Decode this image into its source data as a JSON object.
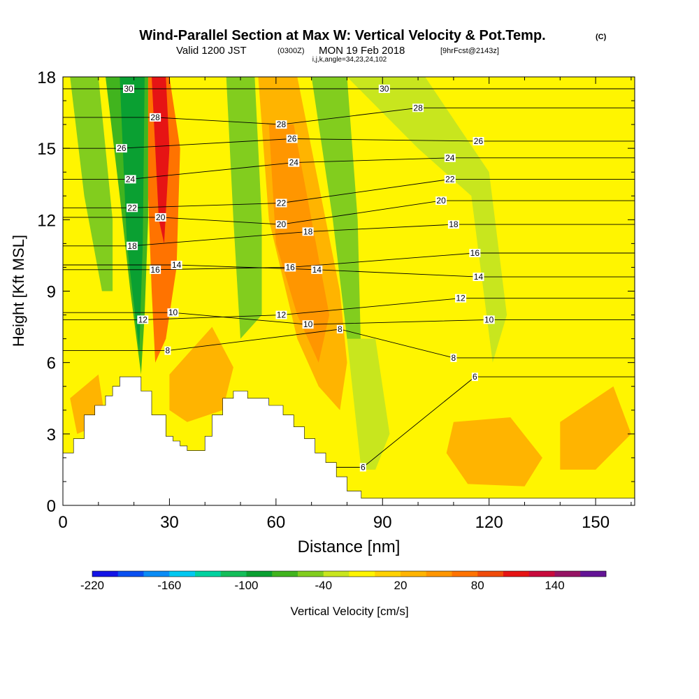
{
  "header": {
    "title": "Wind-Parallel Section at Max W: Vertical Velocity & Pot.Temp.",
    "title_suffix": "(C)",
    "valid_prefix": "Valid 1200 JST",
    "valid_zulu": "(0300Z)",
    "valid_date": "MON 19 Feb 2018",
    "forecast_tag": "[9hrFcst@2143z]",
    "section_params": "i,j,k,angle=34,23,24,102"
  },
  "chart_data": {
    "type": "heatmap",
    "xlabel": "Distance [nm]",
    "ylabel": "Height [Kft MSL]",
    "xlim": [
      0,
      161
    ],
    "ylim": [
      0,
      18
    ],
    "x_ticks": [
      "0",
      "30",
      "60",
      "90",
      "120",
      "150"
    ],
    "x_tick_values": [
      0,
      30,
      60,
      90,
      120,
      150
    ],
    "y_ticks": [
      "0",
      "3",
      "6",
      "9",
      "12",
      "15",
      "18"
    ],
    "y_tick_values": [
      0,
      3,
      6,
      9,
      12,
      15,
      18
    ],
    "colorbar": {
      "label": "Vertical Velocity [cm/s]",
      "min": -220,
      "max": 180,
      "step": 20,
      "tick_labels": [
        "-220",
        "-160",
        "-100",
        "-40",
        "20",
        "80",
        "140"
      ],
      "tick_values": [
        -220,
        -160,
        -100,
        -40,
        20,
        80,
        140
      ],
      "colors": [
        "#1414e6",
        "#0a50f0",
        "#0a8cf5",
        "#00c8f0",
        "#00d2a0",
        "#14be5a",
        "#0aa032",
        "#41b41e",
        "#82cd1e",
        "#c8e61e",
        "#fff500",
        "#ffd200",
        "#ffb400",
        "#ff9600",
        "#ff7300",
        "#f04b0a",
        "#e61414",
        "#c80a3c",
        "#961464",
        "#641496"
      ]
    },
    "terrain": [
      [
        0,
        2.2
      ],
      [
        3,
        2.2
      ],
      [
        3,
        2.8
      ],
      [
        6,
        2.8
      ],
      [
        6,
        3.8
      ],
      [
        9,
        3.8
      ],
      [
        9,
        4.2
      ],
      [
        12,
        4.2
      ],
      [
        12,
        4.6
      ],
      [
        14,
        4.6
      ],
      [
        14,
        5.0
      ],
      [
        16,
        5.0
      ],
      [
        16,
        5.4
      ],
      [
        22,
        5.4
      ],
      [
        22,
        4.8
      ],
      [
        25,
        4.8
      ],
      [
        25,
        3.8
      ],
      [
        29,
        3.8
      ],
      [
        29,
        2.9
      ],
      [
        31,
        2.9
      ],
      [
        31,
        2.7
      ],
      [
        33,
        2.7
      ],
      [
        33,
        2.5
      ],
      [
        35,
        2.5
      ],
      [
        35,
        2.3
      ],
      [
        40,
        2.3
      ],
      [
        40,
        2.9
      ],
      [
        42,
        2.9
      ],
      [
        42,
        3.8
      ],
      [
        45,
        3.8
      ],
      [
        45,
        4.5
      ],
      [
        48,
        4.5
      ],
      [
        48,
        4.8
      ],
      [
        52,
        4.8
      ],
      [
        52,
        4.5
      ],
      [
        58,
        4.5
      ],
      [
        58,
        4.2
      ],
      [
        62,
        4.2
      ],
      [
        62,
        3.8
      ],
      [
        65,
        3.8
      ],
      [
        65,
        3.3
      ],
      [
        68,
        3.3
      ],
      [
        68,
        2.8
      ],
      [
        71,
        2.8
      ],
      [
        71,
        2.2
      ],
      [
        74,
        2.2
      ],
      [
        74,
        1.8
      ],
      [
        77,
        1.8
      ],
      [
        77,
        1.2
      ],
      [
        80,
        1.2
      ],
      [
        80,
        0.6
      ],
      [
        84,
        0.6
      ],
      [
        84,
        0.3
      ],
      [
        161,
        0.3
      ]
    ],
    "velocity_regions": [
      {
        "name": "up-orange-1",
        "value": 30,
        "points": [
          [
            55,
            18
          ],
          [
            66,
            18
          ],
          [
            78,
            9
          ],
          [
            80,
            6
          ],
          [
            78,
            4
          ],
          [
            72,
            5
          ],
          [
            66,
            7
          ],
          [
            58,
            12
          ]
        ]
      },
      {
        "name": "up-orange-2",
        "value": 40,
        "points": [
          [
            58,
            16
          ],
          [
            65,
            16
          ],
          [
            75,
            8
          ],
          [
            72,
            6
          ],
          [
            66,
            8
          ],
          [
            60,
            11
          ]
        ]
      },
      {
        "name": "up-strong",
        "value": 60,
        "points": [
          [
            24,
            18
          ],
          [
            30,
            18
          ],
          [
            33,
            15
          ],
          [
            32,
            10
          ],
          [
            29,
            7
          ],
          [
            26,
            6
          ],
          [
            25,
            9
          ],
          [
            24,
            13
          ]
        ]
      },
      {
        "name": "up-core",
        "value": 100,
        "points": [
          [
            25,
            18
          ],
          [
            29,
            18
          ],
          [
            30,
            15
          ],
          [
            28.5,
            11
          ],
          [
            27,
            12
          ],
          [
            26,
            15
          ]
        ]
      },
      {
        "name": "down-green-1",
        "value": -80,
        "points": [
          [
            12,
            18
          ],
          [
            24,
            18
          ],
          [
            24,
            12
          ],
          [
            23,
            8
          ],
          [
            22,
            5.5
          ],
          [
            19,
            9
          ],
          [
            16,
            13
          ]
        ]
      },
      {
        "name": "down-green-2",
        "value": -100,
        "points": [
          [
            16,
            18
          ],
          [
            23,
            18
          ],
          [
            22.5,
            11
          ],
          [
            21.5,
            6.5
          ],
          [
            18,
            11
          ]
        ]
      },
      {
        "name": "down-green-3",
        "value": -60,
        "points": [
          [
            2,
            18
          ],
          [
            10,
            18
          ],
          [
            14,
            12
          ],
          [
            14,
            9
          ],
          [
            11,
            9
          ],
          [
            6,
            13
          ]
        ]
      },
      {
        "name": "down-green-4",
        "value": -50,
        "points": [
          [
            46,
            18
          ],
          [
            54,
            18
          ],
          [
            56,
            12
          ],
          [
            56,
            8
          ],
          [
            50,
            7
          ],
          [
            48,
            12
          ]
        ]
      },
      {
        "name": "down-green-5",
        "value": -50,
        "points": [
          [
            70,
            18
          ],
          [
            80,
            18
          ],
          [
            83,
            12
          ],
          [
            84,
            6
          ],
          [
            80,
            7
          ],
          [
            76,
            12
          ]
        ]
      },
      {
        "name": "down-lime-1",
        "value": -30,
        "points": [
          [
            80,
            18
          ],
          [
            102,
            18
          ],
          [
            120,
            14
          ],
          [
            125,
            8
          ],
          [
            121,
            6
          ],
          [
            115,
            13
          ],
          [
            100,
            15
          ]
        ]
      },
      {
        "name": "down-lime-2",
        "value": -30,
        "points": [
          [
            80,
            7
          ],
          [
            88,
            7
          ],
          [
            92,
            3
          ],
          [
            88,
            1.5
          ],
          [
            84,
            1.5
          ]
        ]
      },
      {
        "name": "up-orange-3",
        "value": 20,
        "points": [
          [
            110,
            3.5
          ],
          [
            126,
            3.7
          ],
          [
            135,
            2.0
          ],
          [
            130,
            0.8
          ],
          [
            114,
            0.9
          ],
          [
            108,
            2.2
          ]
        ]
      },
      {
        "name": "up-orange-4",
        "value": 20,
        "points": [
          [
            2,
            4.5
          ],
          [
            10,
            5.5
          ],
          [
            12,
            3.5
          ],
          [
            4,
            3.0
          ]
        ]
      },
      {
        "name": "up-orange-5",
        "value": 20,
        "points": [
          [
            30,
            5.5
          ],
          [
            42,
            7.5
          ],
          [
            48,
            5.8
          ],
          [
            45,
            4.0
          ],
          [
            35,
            3.5
          ],
          [
            30,
            4.0
          ]
        ]
      },
      {
        "name": "up-orange-6",
        "value": 20,
        "points": [
          [
            140,
            3.5
          ],
          [
            155,
            5.0
          ],
          [
            160,
            3.0
          ],
          [
            150,
            1.5
          ],
          [
            140,
            1.5
          ]
        ]
      }
    ],
    "isentropes": [
      {
        "label": "6",
        "labels_at": [
          [
            84.5,
            1.6
          ],
          [
            116,
            5.4
          ]
        ]
      },
      {
        "label": "8",
        "labels_at": [
          [
            29.5,
            6.5
          ],
          [
            78,
            7.4
          ],
          [
            110,
            6.2
          ]
        ]
      },
      {
        "label": "10",
        "labels_at": [
          [
            31,
            8.1
          ],
          [
            69,
            7.6
          ],
          [
            120,
            7.8
          ]
        ]
      },
      {
        "label": "12",
        "labels_at": [
          [
            22.5,
            7.8
          ],
          [
            61.5,
            8.0
          ],
          [
            112,
            8.7
          ]
        ]
      },
      {
        "label": "14",
        "labels_at": [
          [
            32,
            10.1
          ],
          [
            71.5,
            9.9
          ],
          [
            117,
            9.6
          ]
        ]
      },
      {
        "label": "16",
        "labels_at": [
          [
            26,
            9.9
          ],
          [
            64,
            10.0
          ],
          [
            116,
            10.6
          ]
        ]
      },
      {
        "label": "18",
        "labels_at": [
          [
            19.5,
            10.9
          ],
          [
            69,
            11.5
          ],
          [
            110,
            11.8
          ]
        ]
      },
      {
        "label": "20",
        "labels_at": [
          [
            27.5,
            12.1
          ],
          [
            61.5,
            11.8
          ],
          [
            106.5,
            12.8
          ]
        ]
      },
      {
        "label": "22",
        "labels_at": [
          [
            19.5,
            12.5
          ],
          [
            61.5,
            12.7
          ],
          [
            109,
            13.7
          ]
        ]
      },
      {
        "label": "24",
        "labels_at": [
          [
            19,
            13.7
          ],
          [
            65,
            14.4
          ],
          [
            109,
            14.6
          ]
        ]
      },
      {
        "label": "26",
        "labels_at": [
          [
            16.5,
            15.0
          ],
          [
            64.5,
            15.4
          ],
          [
            117,
            15.3
          ]
        ]
      },
      {
        "label": "28",
        "labels_at": [
          [
            26,
            16.3
          ],
          [
            61.5,
            16.0
          ],
          [
            100,
            16.7
          ]
        ]
      },
      {
        "label": "30",
        "labels_at": [
          [
            18.5,
            17.5
          ],
          [
            90.5,
            17.5
          ]
        ]
      }
    ]
  }
}
